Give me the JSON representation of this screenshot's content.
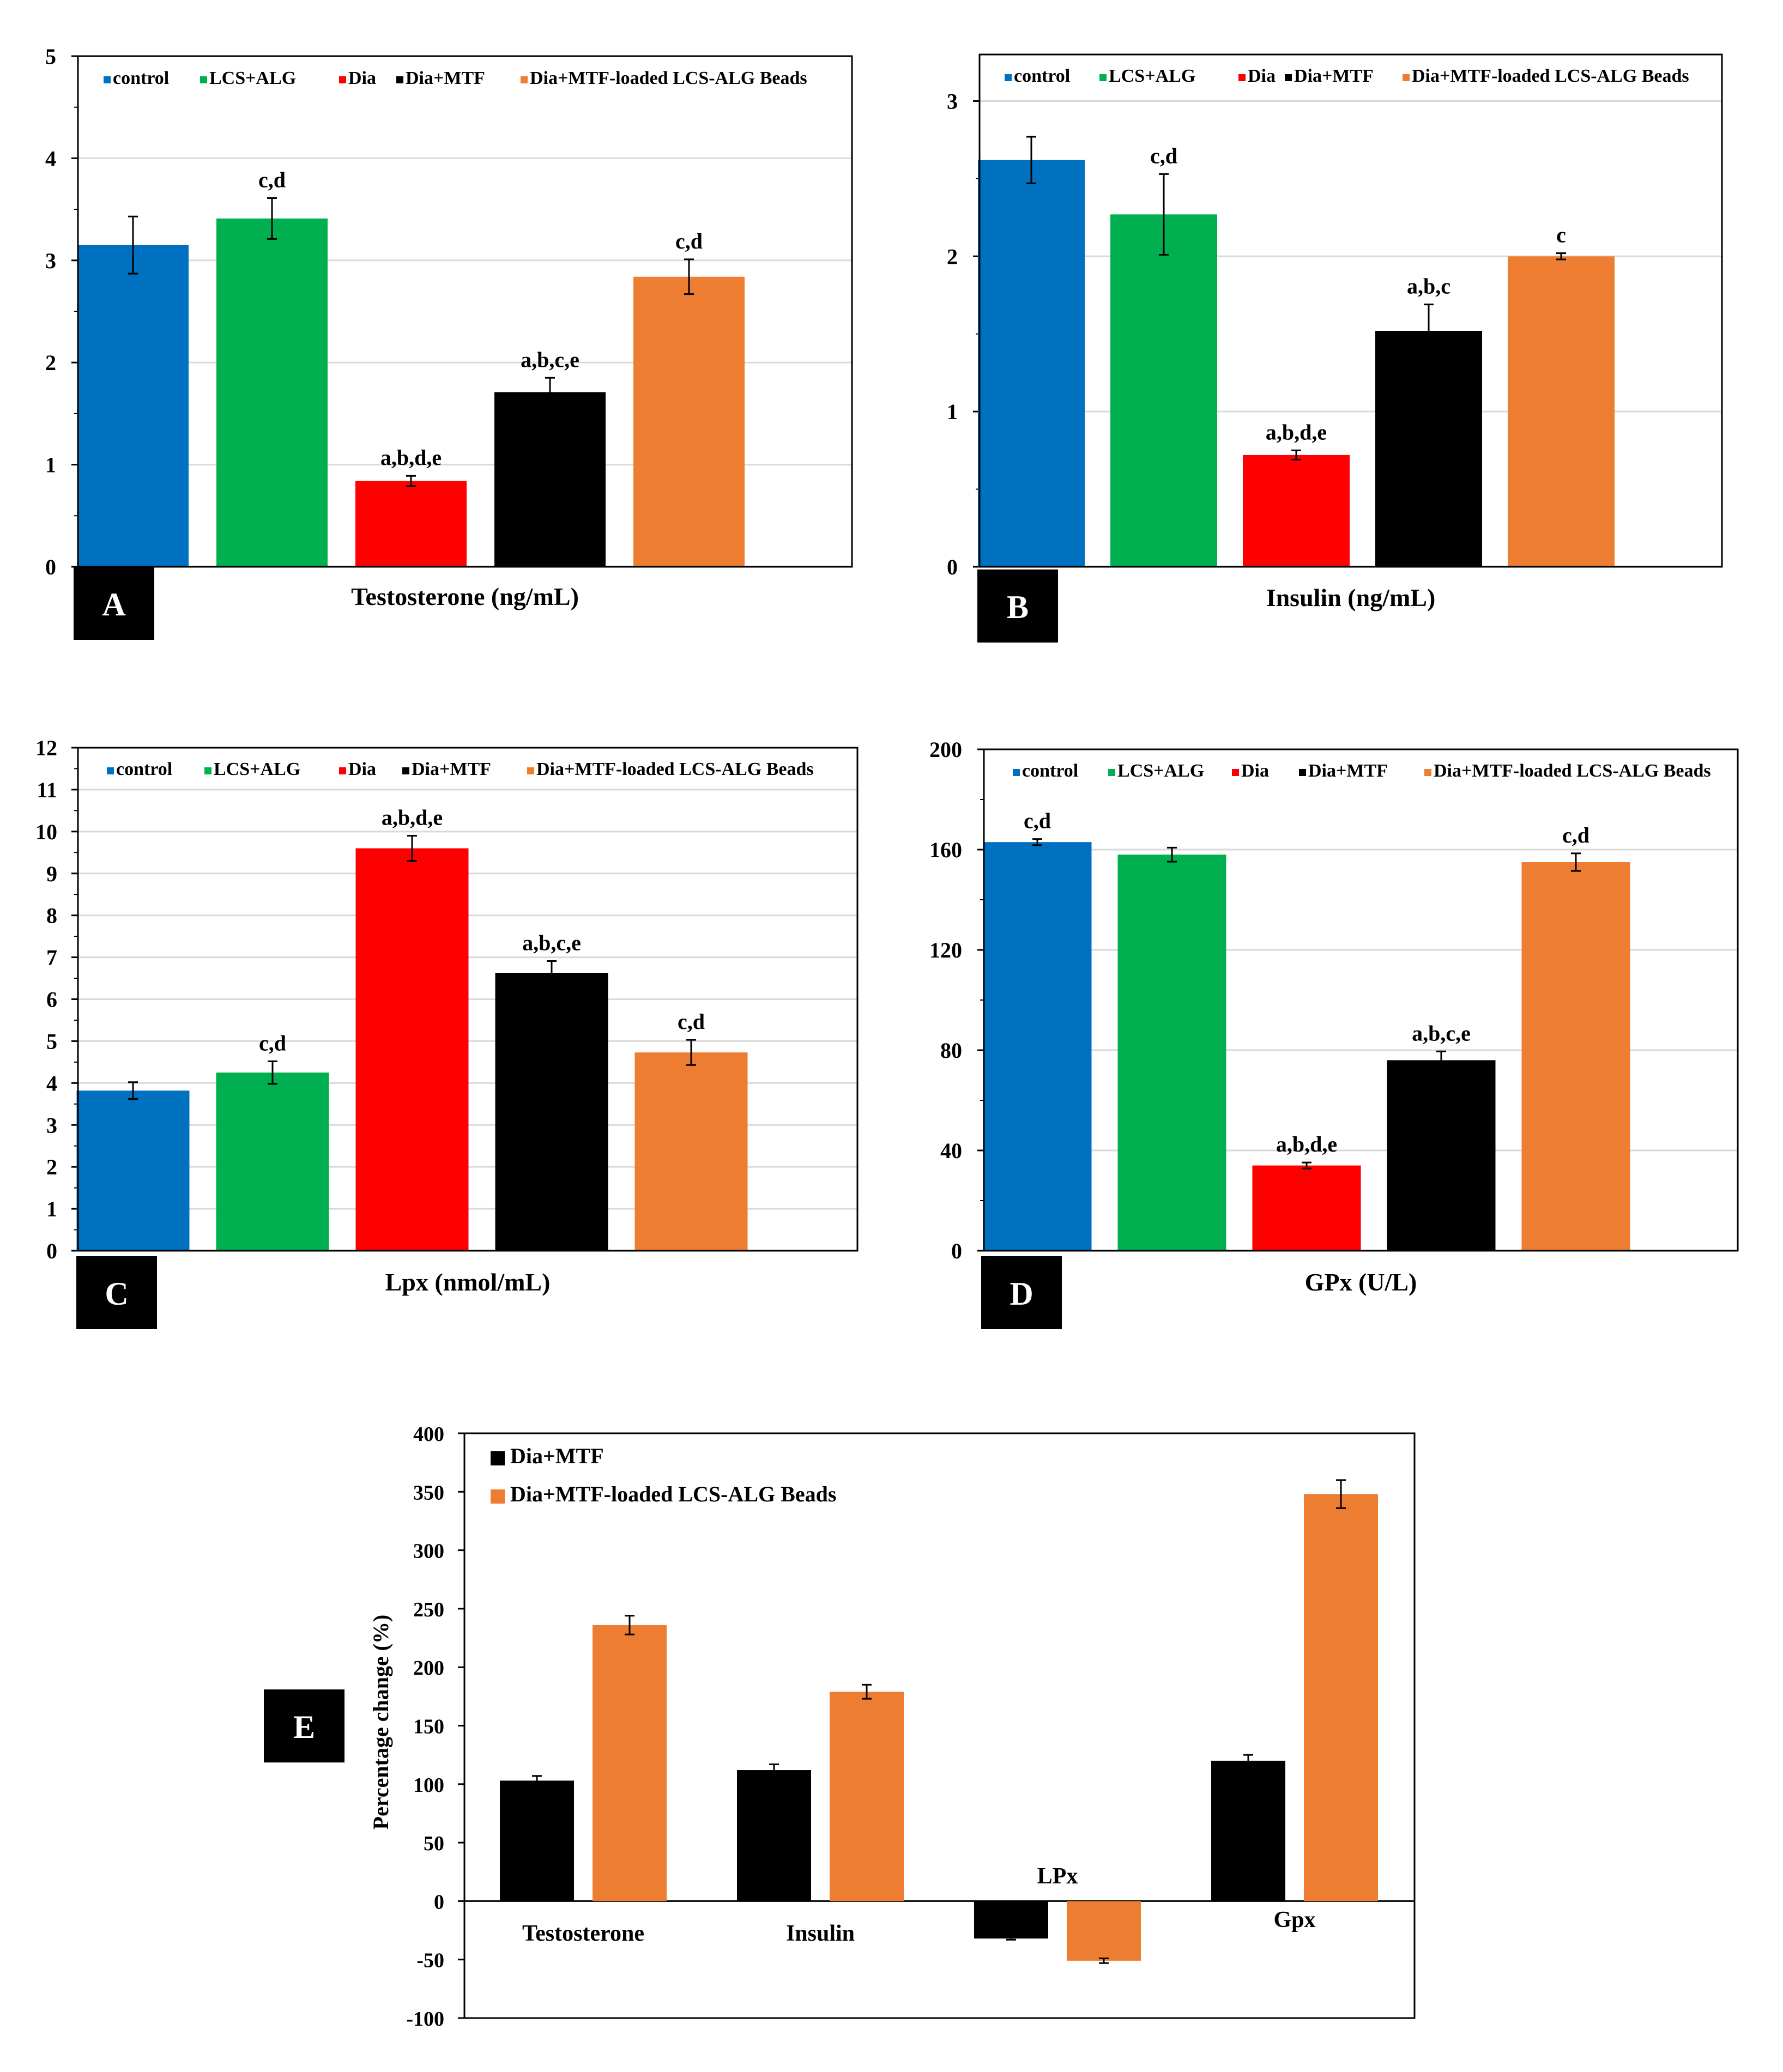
{
  "figure": {
    "colors": {
      "control": "#0070C0",
      "lcs_alg": "#00B050",
      "dia": "#FF0000",
      "dia_mtf": "#000000",
      "beads": "#ED7D31",
      "grid": "#D9D9D9",
      "axis": "#000000",
      "frame": "#000000"
    }
  },
  "chart_data": [
    {
      "id": "A",
      "panel_label": "A",
      "type": "bar",
      "title": "",
      "xlabel": "Testosterone (ng/mL)",
      "ylabel": "",
      "ylim": [
        0,
        5
      ],
      "yticks": [
        "0",
        "1",
        "2",
        "3",
        "4",
        "5"
      ],
      "legend": [
        "control",
        "LCS+ALG",
        "Dia",
        "Dia+MTF",
        "Dia+MTF-loaded LCS-ALG Beads"
      ],
      "legend_position": "top",
      "grid": true,
      "categories": [
        "control",
        "LCS+ALG",
        "Dia",
        "Dia+MTF",
        "Dia+MTF-loaded LCS-ALG Beads"
      ],
      "values": [
        3.15,
        3.41,
        0.84,
        1.71,
        2.84
      ],
      "errors": [
        0.28,
        0.2,
        0.05,
        0.14,
        0.17
      ],
      "annotations": [
        "",
        "c,d",
        "a,b,d,e",
        "a,b,c,e",
        "c,d"
      ]
    },
    {
      "id": "B",
      "panel_label": "B",
      "type": "bar",
      "title": "",
      "xlabel": "Insulin (ng/mL)",
      "ylabel": "",
      "ylim": [
        0,
        3.3
      ],
      "yticks": [
        "0",
        "1",
        "2",
        "3"
      ],
      "legend": [
        "control",
        "LCS+ALG",
        "Dia",
        "Dia+MTF",
        "Dia+MTF-loaded LCS-ALG Beads"
      ],
      "legend_position": "top",
      "grid": true,
      "categories": [
        "control",
        "LCS+ALG",
        "Dia",
        "Dia+MTF",
        "Dia+MTF-loaded LCS-ALG Beads"
      ],
      "values": [
        2.62,
        2.27,
        0.72,
        1.52,
        2.0
      ],
      "errors": [
        0.15,
        0.26,
        0.03,
        0.17,
        0.02
      ],
      "annotations": [
        "",
        "c,d",
        "a,b,d,e",
        "a,b,c",
        "c"
      ]
    },
    {
      "id": "C",
      "panel_label": "C",
      "type": "bar",
      "title": "",
      "xlabel": "Lpx (nmol/mL)",
      "ylabel": "",
      "ylim": [
        0,
        12
      ],
      "yticks": [
        "0",
        "1",
        "2",
        "3",
        "4",
        "5",
        "6",
        "7",
        "8",
        "9",
        "10",
        "11",
        "12"
      ],
      "legend": [
        "control",
        "LCS+ALG",
        "Dia",
        "Dia+MTF",
        "Dia+MTF-loaded LCS-ALG Beads"
      ],
      "legend_position": "top",
      "grid": true,
      "categories": [
        "control",
        "LCS+ALG",
        "Dia",
        "Dia+MTF",
        "Dia+MTF-loaded LCS-ALG Beads"
      ],
      "values": [
        3.82,
        4.25,
        9.6,
        6.63,
        4.73
      ],
      "errors": [
        0.2,
        0.27,
        0.3,
        0.28,
        0.3
      ],
      "annotations": [
        "",
        "c,d",
        "a,b,d,e",
        "a,b,c,e",
        "c,d"
      ]
    },
    {
      "id": "D",
      "panel_label": "D",
      "type": "bar",
      "title": "",
      "xlabel": "GPx (U/L)",
      "ylabel": "",
      "ylim": [
        0,
        200
      ],
      "yticks": [
        "0",
        "40",
        "80",
        "120",
        "160",
        "200"
      ],
      "legend": [
        "control",
        "LCS+ALG",
        "Dia",
        "Dia+MTF",
        "Dia+MTF-loaded LCS-ALG Beads"
      ],
      "legend_position": "top",
      "grid": true,
      "categories": [
        "control",
        "LCS+ALG",
        "Dia",
        "Dia+MTF",
        "Dia+MTF-loaded LCS-ALG Beads"
      ],
      "values": [
        163,
        158,
        34,
        76,
        155
      ],
      "errors": [
        1.2,
        2.8,
        1.2,
        3.5,
        3.5
      ],
      "annotations": [
        "c,d",
        "",
        "a,b,d,e",
        "a,b,c,e",
        "c,d"
      ]
    },
    {
      "id": "E",
      "panel_label": "E",
      "type": "bar",
      "title": "",
      "xlabel": "",
      "ylabel": "Percentage change (%)",
      "ylim": [
        -100,
        400
      ],
      "yticks": [
        "-100",
        "-50",
        "0",
        "50",
        "100",
        "150",
        "200",
        "250",
        "300",
        "350",
        "400"
      ],
      "legend": [
        "Dia+MTF",
        "Dia+MTF-loaded LCS-ALG Beads"
      ],
      "legend_position": "top-left",
      "grid": false,
      "categories": [
        "Testosterone",
        "Insulin",
        "LPx",
        "Gpx"
      ],
      "series": [
        {
          "name": "Dia+MTF",
          "values": [
            103,
            112,
            -32,
            120
          ],
          "errors": [
            4,
            5,
            1,
            5
          ]
        },
        {
          "name": "Dia+MTF-loaded LCS-ALG Beads",
          "values": [
            236,
            179,
            -51,
            348
          ],
          "errors": [
            8,
            6,
            2,
            12
          ]
        }
      ]
    }
  ]
}
